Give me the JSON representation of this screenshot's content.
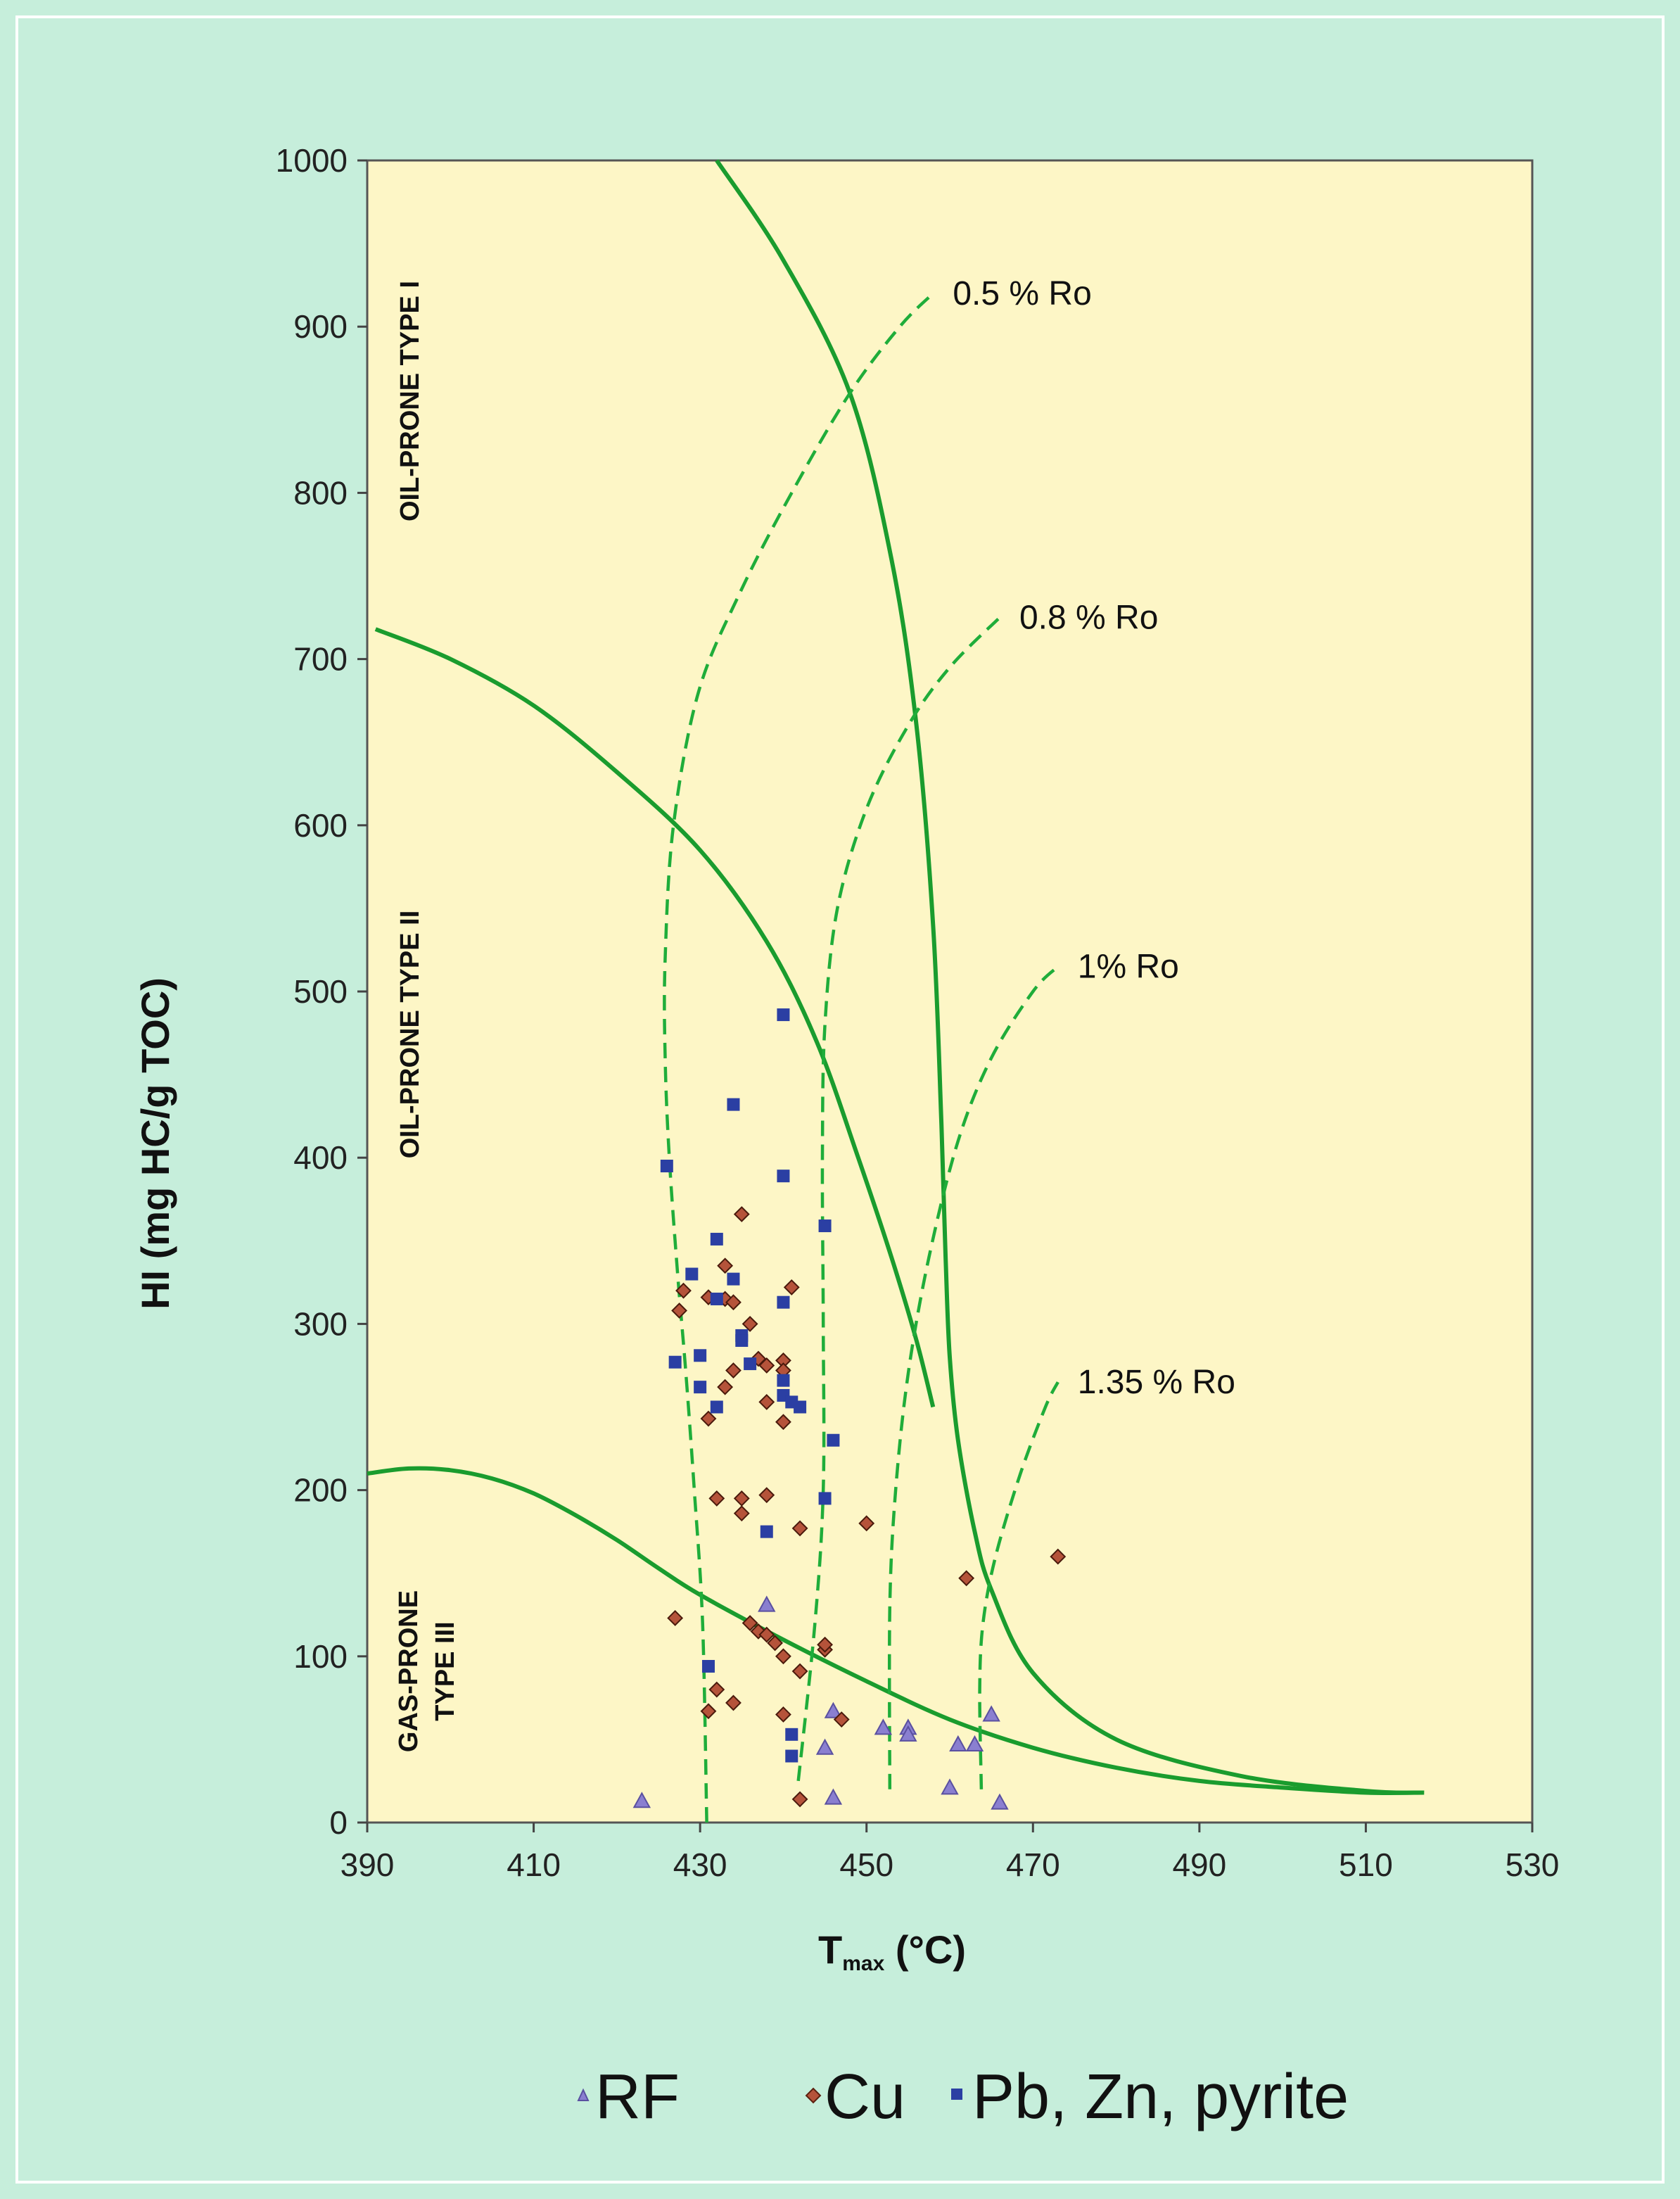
{
  "chart_data": {
    "type": "scatter",
    "title": "",
    "xlabel_main": "T",
    "xlabel_sub": "max",
    "xlabel_unit": " (°C)",
    "ylabel": "HI (mg HC/g TOC)",
    "xlim": [
      390,
      530
    ],
    "ylim": [
      0,
      1000
    ],
    "x_ticks": [
      "390",
      "410",
      "430",
      "450",
      "470",
      "490",
      "510",
      "530"
    ],
    "y_ticks": [
      "0",
      "100",
      "200",
      "300",
      "400",
      "500",
      "600",
      "700",
      "800",
      "900",
      "1000"
    ],
    "zones": [
      {
        "label": "OIL-PRONE TYPE I"
      },
      {
        "label": "OIL-PRONE TYPE II"
      },
      {
        "label": "GAS-PRONE",
        "label2": "TYPE III"
      }
    ],
    "type_curves": [
      {
        "name": "Type I",
        "points": [
          [
            432,
            1000
          ],
          [
            440,
            940
          ],
          [
            448,
            860
          ],
          [
            453,
            760
          ],
          [
            456,
            660
          ],
          [
            458,
            540
          ],
          [
            459,
            420
          ],
          [
            459.5,
            340
          ],
          [
            460,
            280
          ],
          [
            461,
            230
          ],
          [
            463,
            175
          ],
          [
            465,
            140
          ],
          [
            470,
            90
          ],
          [
            480,
            50
          ],
          [
            495,
            28
          ],
          [
            510,
            19
          ],
          [
            517,
            18
          ]
        ]
      },
      {
        "name": "Type II",
        "points": [
          [
            391,
            718
          ],
          [
            400,
            700
          ],
          [
            410,
            672
          ],
          [
            420,
            632
          ],
          [
            430,
            585
          ],
          [
            438,
            530
          ],
          [
            444,
            470
          ],
          [
            449,
            400
          ],
          [
            453,
            340
          ],
          [
            456,
            290
          ],
          [
            458,
            250
          ]
        ]
      },
      {
        "name": "Type III",
        "points": [
          [
            390,
            210
          ],
          [
            395,
            213
          ],
          [
            400,
            212
          ],
          [
            405,
            207
          ],
          [
            410,
            198
          ],
          [
            415,
            185
          ],
          [
            420,
            170
          ],
          [
            425,
            153
          ],
          [
            430,
            137
          ],
          [
            440,
            110
          ],
          [
            450,
            85
          ],
          [
            460,
            62
          ],
          [
            470,
            45
          ],
          [
            480,
            33
          ],
          [
            490,
            25
          ],
          [
            500,
            21
          ],
          [
            510,
            18
          ],
          [
            517,
            18
          ]
        ]
      }
    ],
    "iso_reflectance": [
      {
        "label": "0.5 % Ro",
        "points": [
          [
            430.8,
            0
          ],
          [
            430.3,
            120
          ],
          [
            429.3,
            200
          ],
          [
            428.3,
            270
          ],
          [
            427.3,
            330
          ],
          [
            426.3,
            400
          ],
          [
            425.8,
            460
          ],
          [
            425.8,
            520
          ],
          [
            426.8,
            600
          ],
          [
            429.8,
            680
          ],
          [
            434.8,
            740
          ],
          [
            441,
            800
          ],
          [
            448,
            860
          ],
          [
            454,
            900
          ],
          [
            458,
            920
          ]
        ]
      },
      {
        "label": "0.8 % Ro",
        "points": [
          [
            441.8,
            25
          ],
          [
            443.8,
            120
          ],
          [
            444.8,
            200
          ],
          [
            444.8,
            300
          ],
          [
            444.7,
            400
          ],
          [
            445,
            480
          ],
          [
            446.5,
            550
          ],
          [
            450,
            610
          ],
          [
            455,
            660
          ],
          [
            460,
            695
          ],
          [
            466,
            725
          ]
        ]
      },
      {
        "label": "1% Ro",
        "points": [
          [
            452.8,
            20
          ],
          [
            452.8,
            130
          ],
          [
            453.5,
            200
          ],
          [
            455,
            270
          ],
          [
            457.5,
            340
          ],
          [
            461,
            410
          ],
          [
            465,
            460
          ],
          [
            470,
            500
          ],
          [
            473,
            515
          ]
        ]
      },
      {
        "label": "1.35 % Ro",
        "points": [
          [
            463.8,
            20
          ],
          [
            463.6,
            80
          ],
          [
            464,
            120
          ],
          [
            465.5,
            160
          ],
          [
            468.5,
            210
          ],
          [
            471.5,
            250
          ],
          [
            473,
            265
          ]
        ]
      }
    ],
    "legend": [
      {
        "name": "RF",
        "marker": "triangle"
      },
      {
        "name": "Cu",
        "marker": "diamond"
      },
      {
        "name": "Pb, Zn, pyrite",
        "marker": "square"
      }
    ],
    "series": [
      {
        "name": "RF",
        "marker": "triangle",
        "color": "#8a7fd0",
        "points": [
          [
            423,
            13
          ],
          [
            438,
            131
          ],
          [
            445,
            45
          ],
          [
            446,
            67
          ],
          [
            446,
            15
          ],
          [
            452,
            57
          ],
          [
            455,
            57
          ],
          [
            460,
            21
          ],
          [
            461,
            47
          ],
          [
            463,
            47
          ],
          [
            465,
            65
          ],
          [
            466,
            12
          ],
          [
            455,
            53
          ]
        ]
      },
      {
        "name": "Cu",
        "marker": "diamond",
        "color": "#b5533a",
        "points": [
          [
            427,
            123
          ],
          [
            427.5,
            308
          ],
          [
            428,
            320
          ],
          [
            431,
            243
          ],
          [
            431,
            67
          ],
          [
            431,
            316
          ],
          [
            432,
            195
          ],
          [
            432,
            80
          ],
          [
            433,
            315
          ],
          [
            433,
            335
          ],
          [
            433,
            262
          ],
          [
            434,
            72
          ],
          [
            434,
            272
          ],
          [
            434,
            313
          ],
          [
            435,
            366
          ],
          [
            435,
            195
          ],
          [
            435,
            186
          ],
          [
            436,
            120
          ],
          [
            436,
            300
          ],
          [
            437,
            279
          ],
          [
            437,
            115
          ],
          [
            438,
            275
          ],
          [
            438,
            197
          ],
          [
            438,
            253
          ],
          [
            438,
            113
          ],
          [
            439,
            108
          ],
          [
            440,
            65
          ],
          [
            440,
            100
          ],
          [
            440,
            241
          ],
          [
            440,
            278
          ],
          [
            440,
            272
          ],
          [
            441,
            322
          ],
          [
            442,
            177
          ],
          [
            442,
            91
          ],
          [
            442,
            14
          ],
          [
            445,
            104
          ],
          [
            445,
            107
          ],
          [
            447,
            62
          ],
          [
            450,
            180
          ],
          [
            462,
            147
          ],
          [
            473,
            160
          ]
        ]
      },
      {
        "name": "Pb, Zn, pyrite",
        "marker": "square",
        "color": "#2b3fa3",
        "points": [
          [
            426,
            395
          ],
          [
            427,
            277
          ],
          [
            429,
            330
          ],
          [
            430,
            262
          ],
          [
            430,
            281
          ],
          [
            431,
            94
          ],
          [
            432,
            351
          ],
          [
            432,
            250
          ],
          [
            432,
            315
          ],
          [
            434,
            432
          ],
          [
            434,
            327
          ],
          [
            435,
            293
          ],
          [
            435,
            290
          ],
          [
            436,
            276
          ],
          [
            438,
            175
          ],
          [
            440,
            486
          ],
          [
            440,
            389
          ],
          [
            440,
            313
          ],
          [
            440,
            266
          ],
          [
            440,
            257
          ],
          [
            441,
            253
          ],
          [
            441,
            40
          ],
          [
            441,
            53
          ],
          [
            442,
            250
          ],
          [
            445,
            359
          ],
          [
            445,
            195
          ],
          [
            446,
            230
          ]
        ]
      }
    ]
  }
}
